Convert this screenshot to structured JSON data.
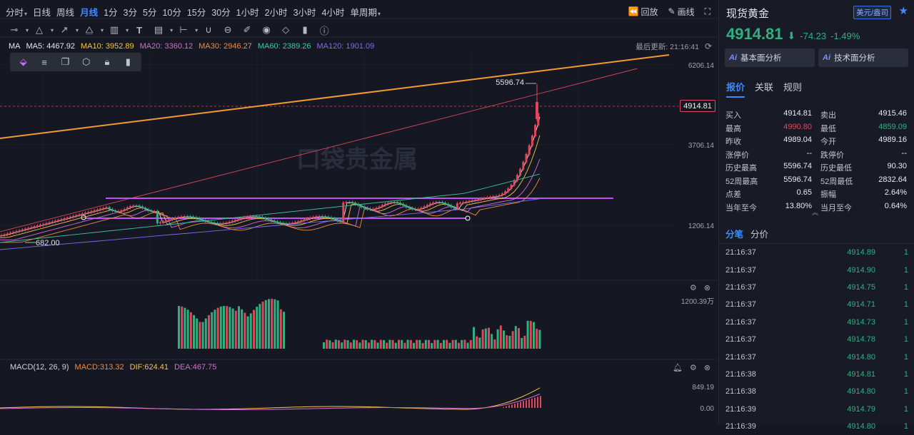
{
  "periods": [
    {
      "label": "分时",
      "caret": true
    },
    {
      "label": "日线"
    },
    {
      "label": "周线"
    },
    {
      "label": "月线",
      "active": true
    },
    {
      "label": "1分"
    },
    {
      "label": "3分"
    },
    {
      "label": "5分"
    },
    {
      "label": "10分"
    },
    {
      "label": "15分"
    },
    {
      "label": "30分"
    },
    {
      "label": "1小时"
    },
    {
      "label": "2小时"
    },
    {
      "label": "3小时"
    },
    {
      "label": "4小时"
    },
    {
      "label": "单周期",
      "caret": true
    }
  ],
  "toolbar_right": {
    "replay": "回放",
    "draw": "画线"
  },
  "ma": {
    "label": "MA",
    "items": [
      {
        "text": "MA5: 4467.92",
        "color": "#e6e6e6"
      },
      {
        "text": "MA10: 3952.89",
        "color": "#f5c542"
      },
      {
        "text": "MA20: 3360.12",
        "color": "#d66bd6"
      },
      {
        "text": "MA30: 2946.27",
        "color": "#f08a3c"
      },
      {
        "text": "MA60: 2389.26",
        "color": "#3cc8a0"
      },
      {
        "text": "MA120: 1901.09",
        "color": "#7a6cf0"
      }
    ]
  },
  "last_update": "最后更新: 21:16:41",
  "price_axis": [
    "6206.14",
    "3706.14",
    "1206.14"
  ],
  "current_price_tag": "4914.81",
  "annotations": {
    "high": "5596.74",
    "low": "682.00"
  },
  "watermark": "口袋贵金属",
  "volume_axis": "1200.39万",
  "macd": {
    "title": "MACD(12, 26, 9)",
    "macd": "MACD:313.32",
    "dif": "DIF:624.41",
    "dea": "DEA:467.75",
    "axis_top": "849.19",
    "axis_zero": "0.00"
  },
  "instrument": {
    "name": "现货黄金",
    "currency": "美元/盎司",
    "price": "4914.81",
    "change": "-74.23",
    "change_pct": "-1.49%"
  },
  "ai": {
    "fundamental": "基本面分析",
    "technical": "技术面分析",
    "logo": "Ai"
  },
  "panel_tabs": [
    "报价",
    "关联",
    "规则"
  ],
  "quote": [
    [
      {
        "l": "买入",
        "v": "4914.81"
      },
      {
        "l": "卖出",
        "v": "4915.46"
      }
    ],
    [
      {
        "l": "最高",
        "v": "4990.80",
        "c": "red"
      },
      {
        "l": "最低",
        "v": "4859.09",
        "c": "green"
      }
    ],
    [
      {
        "l": "昨收",
        "v": "4989.04"
      },
      {
        "l": "今开",
        "v": "4989.16"
      }
    ],
    [
      {
        "l": "涨停价",
        "v": "--"
      },
      {
        "l": "跌停价",
        "v": "--"
      }
    ],
    [
      {
        "l": "历史最高",
        "v": "5596.74"
      },
      {
        "l": "历史最低",
        "v": "90.30"
      }
    ],
    [
      {
        "l": "52周最高",
        "v": "5596.74"
      },
      {
        "l": "52周最低",
        "v": "2832.64"
      }
    ],
    [
      {
        "l": "点差",
        "v": "0.65"
      },
      {
        "l": "振幅",
        "v": "2.64%"
      }
    ],
    [
      {
        "l": "当年至今",
        "v": "13.80%"
      },
      {
        "l": "当月至今",
        "v": "0.64%"
      }
    ]
  ],
  "tick_tabs": [
    "分笔",
    "分价"
  ],
  "ticks": [
    {
      "t": "21:16:37",
      "p": "4914.89",
      "q": "1"
    },
    {
      "t": "21:16:37",
      "p": "4914.90",
      "q": "1"
    },
    {
      "t": "21:16:37",
      "p": "4914.75",
      "q": "1"
    },
    {
      "t": "21:16:37",
      "p": "4914.71",
      "q": "1"
    },
    {
      "t": "21:16:37",
      "p": "4914.73",
      "q": "1"
    },
    {
      "t": "21:16:37",
      "p": "4914.78",
      "q": "1"
    },
    {
      "t": "21:16:37",
      "p": "4914.80",
      "q": "1"
    },
    {
      "t": "21:16:38",
      "p": "4914.81",
      "q": "1"
    },
    {
      "t": "21:16:38",
      "p": "4914.80",
      "q": "1"
    },
    {
      "t": "21:16:39",
      "p": "4914.79",
      "q": "1"
    },
    {
      "t": "21:16:39",
      "p": "4914.80",
      "q": "1"
    }
  ]
}
